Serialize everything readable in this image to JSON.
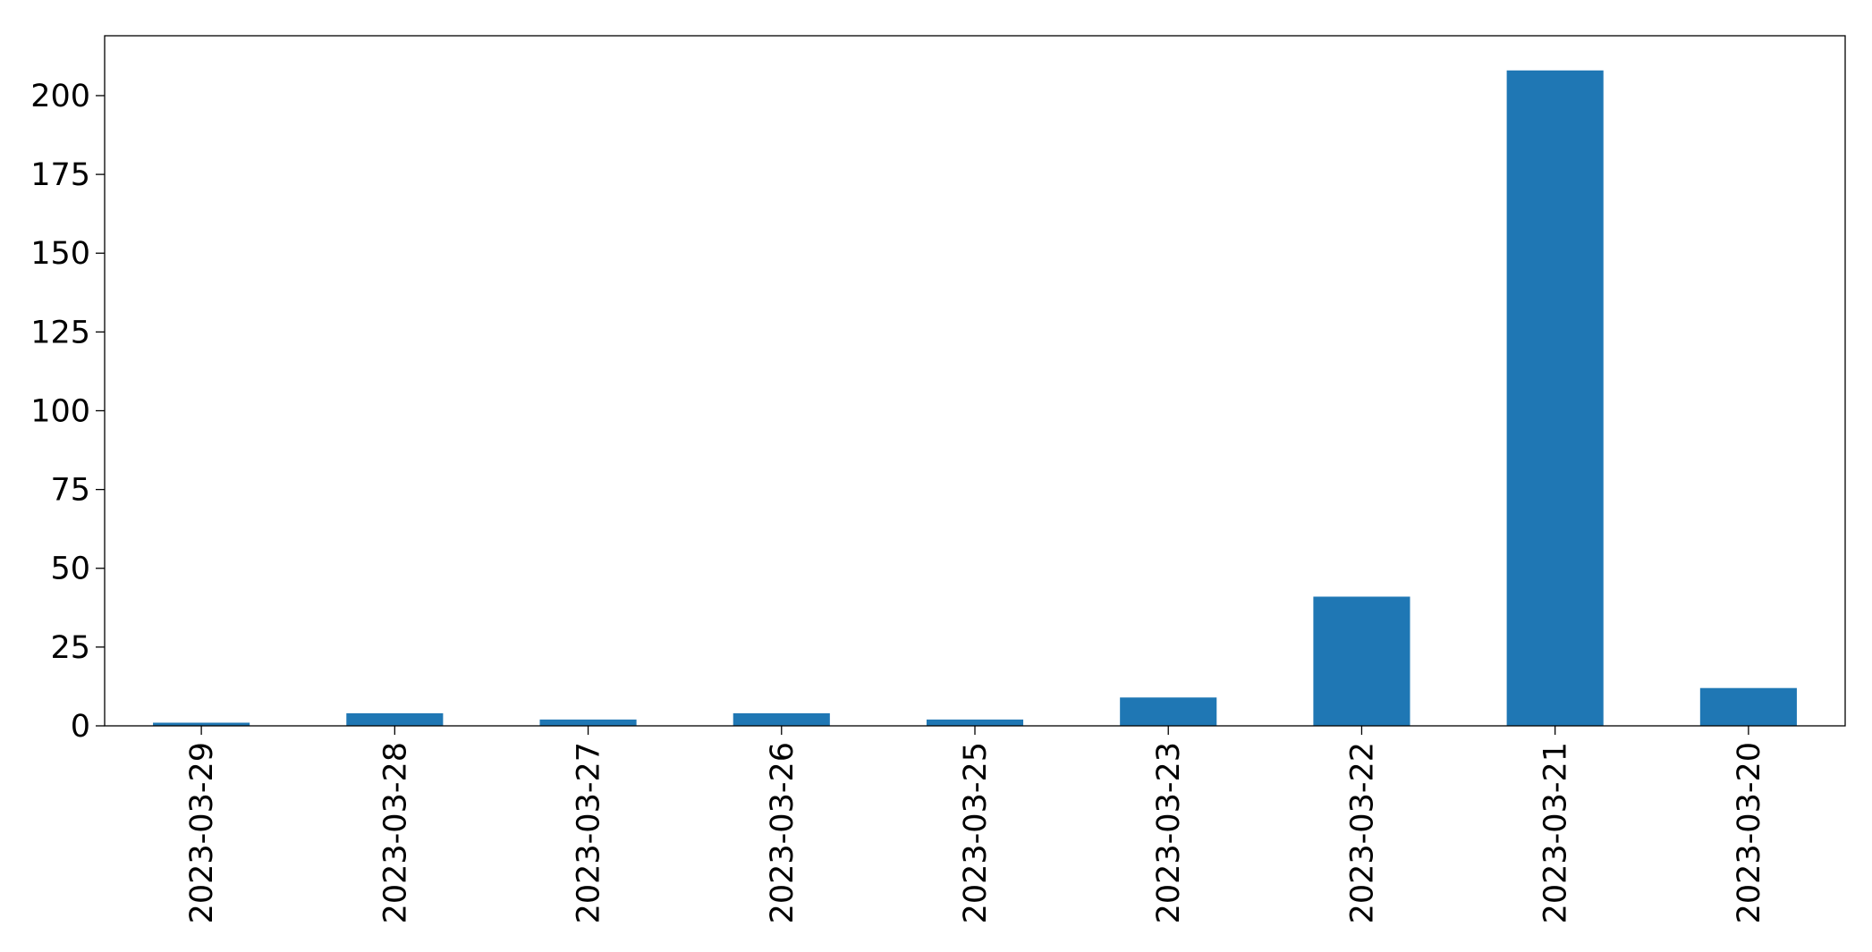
{
  "chart_data": {
    "type": "bar",
    "title": "",
    "xlabel": "",
    "ylabel": "",
    "categories": [
      "2023-03-29",
      "2023-03-28",
      "2023-03-27",
      "2023-03-26",
      "2023-03-25",
      "2023-03-23",
      "2023-03-22",
      "2023-03-21",
      "2023-03-20"
    ],
    "values": [
      1,
      4,
      2,
      4,
      2,
      9,
      41,
      208,
      12
    ],
    "ylim": [
      0,
      219
    ],
    "yticks": [
      0,
      25,
      50,
      75,
      100,
      125,
      150,
      175,
      200
    ],
    "grid": false,
    "legend": null,
    "bar_color": "#1f77b4",
    "x_tick_rotation": "vertical"
  }
}
